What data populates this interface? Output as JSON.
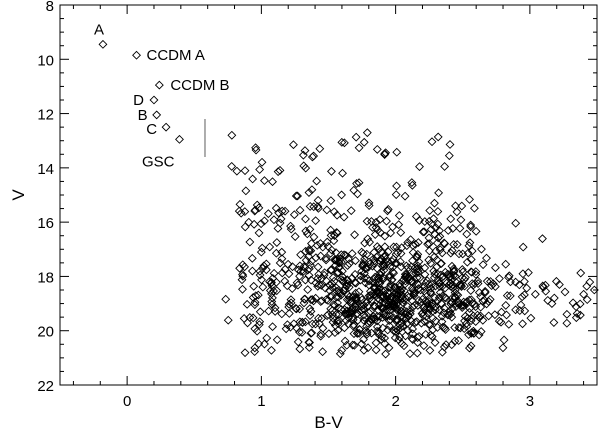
{
  "chart_data": {
    "type": "scatter",
    "title": "",
    "xlabel": "B-V",
    "ylabel": "V",
    "xlim": [
      -0.5,
      3.5
    ],
    "ylim": [
      22,
      8
    ],
    "y_inverted": true,
    "x_ticks": [
      0,
      1,
      2,
      3
    ],
    "x_tick_labels": [
      "0",
      "1",
      "2",
      "3"
    ],
    "y_ticks": [
      8,
      10,
      12,
      14,
      16,
      18,
      20,
      22
    ],
    "y_tick_labels": [
      "8",
      "10",
      "12",
      "14",
      "16",
      "18",
      "20",
      "22"
    ],
    "marker": "diamond",
    "grid": false,
    "labeled_points": [
      {
        "label": "A",
        "x": -0.18,
        "y": 9.45
      },
      {
        "label": "CCDM A",
        "x": 0.07,
        "y": 9.85
      },
      {
        "label": "CCDM B",
        "x": 0.24,
        "y": 10.95
      },
      {
        "label": "D",
        "x": 0.2,
        "y": 11.5
      },
      {
        "label": "B",
        "x": 0.22,
        "y": 12.05
      },
      {
        "label": "C",
        "x": 0.29,
        "y": 12.5
      },
      {
        "label": "GSC",
        "x": 0.39,
        "y": 12.95
      }
    ],
    "vertical_marker": {
      "x": 0.58,
      "y_range": [
        12.2,
        13.6
      ]
    },
    "field_stars_summary": {
      "count_approx": 1100,
      "x_range": [
        0.72,
        3.5
      ],
      "y_range": [
        12.7,
        20.9
      ],
      "densest_region": {
        "x": 1.95,
        "y": 18.6
      }
    }
  }
}
